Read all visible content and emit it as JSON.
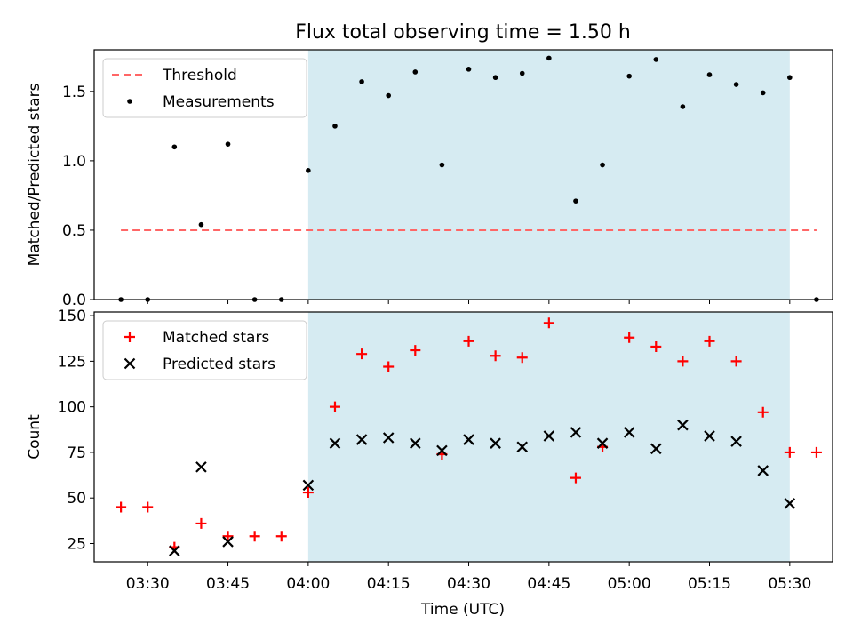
{
  "chart_data": [
    {
      "type": "scatter",
      "title": "Flux total observing time = 1.50 h",
      "xlabel": "",
      "ylabel": "Matched/Predicted stars",
      "xlim": [
        "03:20",
        "05:38"
      ],
      "ylim": [
        0,
        1.8
      ],
      "yticks": [
        0.0,
        0.5,
        1.0,
        1.5
      ],
      "ytick_labels": [
        "0.0",
        "0.5",
        "1.0",
        "1.5"
      ],
      "legend_position": "upper-left",
      "shaded_region": {
        "x0": "04:00",
        "x1": "05:30",
        "color": "#add8e6"
      },
      "series": [
        {
          "name": "Threshold",
          "kind": "dashed-line",
          "color": "#ff6666",
          "x": [
            "03:25",
            "05:35"
          ],
          "values": [
            0.5,
            0.5
          ]
        },
        {
          "name": "Measurements",
          "kind": "dot",
          "color": "#000000",
          "x": [
            "03:25",
            "03:30",
            "03:35",
            "03:40",
            "03:45",
            "03:50",
            "03:55",
            "04:00",
            "04:05",
            "04:10",
            "04:15",
            "04:20",
            "04:25",
            "04:30",
            "04:35",
            "04:40",
            "04:45",
            "04:50",
            "04:55",
            "05:00",
            "05:05",
            "05:10",
            "05:15",
            "05:20",
            "05:25",
            "05:30",
            "05:35"
          ],
          "values": [
            0,
            0,
            1.1,
            0.54,
            1.12,
            0,
            0,
            0.93,
            1.25,
            1.57,
            1.47,
            1.64,
            0.97,
            1.66,
            1.6,
            1.63,
            1.74,
            0.71,
            0.97,
            1.61,
            1.73,
            1.39,
            1.62,
            1.55,
            1.49,
            1.6,
            0
          ]
        }
      ]
    },
    {
      "type": "scatter",
      "title": "",
      "xlabel": "Time (UTC)",
      "ylabel": "Count",
      "xlim": [
        "03:20",
        "05:38"
      ],
      "ylim": [
        15,
        152
      ],
      "yticks": [
        25,
        50,
        75,
        100,
        125,
        150
      ],
      "ytick_labels": [
        "25",
        "50",
        "75",
        "100",
        "125",
        "150"
      ],
      "xticks": [
        "03:30",
        "03:45",
        "04:00",
        "04:15",
        "04:30",
        "04:45",
        "05:00",
        "05:15",
        "05:30"
      ],
      "legend_position": "upper-left",
      "shaded_region": {
        "x0": "04:00",
        "x1": "05:30",
        "color": "#add8e6"
      },
      "series": [
        {
          "name": "Matched stars",
          "kind": "plus",
          "color": "#ff0000",
          "x": [
            "03:25",
            "03:30",
            "03:35",
            "03:40",
            "03:45",
            "03:50",
            "03:55",
            "04:00",
            "04:05",
            "04:10",
            "04:15",
            "04:20",
            "04:25",
            "04:30",
            "04:35",
            "04:40",
            "04:45",
            "04:50",
            "04:55",
            "05:00",
            "05:05",
            "05:10",
            "05:15",
            "05:20",
            "05:25",
            "05:30",
            "05:35"
          ],
          "values": [
            45,
            45,
            23,
            36,
            29,
            29,
            29,
            53,
            100,
            129,
            122,
            131,
            74,
            136,
            128,
            127,
            146,
            61,
            78,
            138,
            133,
            125,
            136,
            125,
            97,
            75,
            75
          ]
        },
        {
          "name": "Predicted stars",
          "kind": "cross",
          "color": "#000000",
          "x": [
            "03:35",
            "03:40",
            "03:45",
            "04:00",
            "04:05",
            "04:10",
            "04:15",
            "04:20",
            "04:25",
            "04:30",
            "04:35",
            "04:40",
            "04:45",
            "04:50",
            "04:55",
            "05:00",
            "05:05",
            "05:10",
            "05:15",
            "05:20",
            "05:25",
            "05:30"
          ],
          "values": [
            21,
            67,
            26,
            57,
            80,
            82,
            83,
            80,
            76,
            82,
            80,
            78,
            84,
            86,
            80,
            86,
            77,
            90,
            84,
            81,
            65,
            47
          ]
        }
      ]
    }
  ]
}
